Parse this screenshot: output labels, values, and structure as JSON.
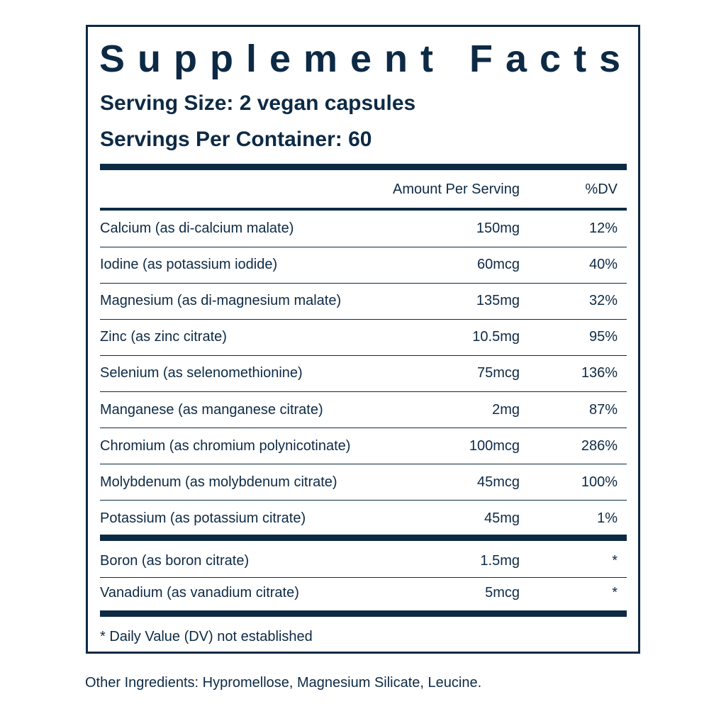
{
  "header": {
    "title": "Supplement Facts",
    "serving_size": "Serving Size: 2 vegan capsules",
    "servings_per_container": "Servings Per Container: 60"
  },
  "table": {
    "columns": [
      "Amount Per Serving",
      "%DV"
    ],
    "groups": [
      [
        [
          "Calcium (as di-calcium malate)",
          "150mg",
          "12%"
        ],
        [
          "Iodine (as potassium iodide)",
          "60mcg",
          "40%"
        ],
        [
          "Magnesium (as di-magnesium malate)",
          "135mg",
          "32%"
        ],
        [
          "Zinc (as zinc citrate)",
          "10.5mg",
          "95%"
        ],
        [
          "Selenium (as selenomethionine)",
          "75mcg",
          "136%"
        ],
        [
          "Manganese (as manganese citrate)",
          "2mg",
          "87%"
        ],
        [
          "Chromium (as chromium polynicotinate)",
          "100mcg",
          "286%"
        ],
        [
          "Molybdenum (as molybdenum citrate)",
          "45mcg",
          "100%"
        ],
        [
          "Potassium (as potassium citrate)",
          "45mg",
          "1%"
        ]
      ],
      [
        [
          "Boron (as boron citrate)",
          "1.5mg",
          "*"
        ],
        [
          "Vanadium (as vanadium citrate)",
          "5mcg",
          "*"
        ]
      ]
    ]
  },
  "footnote": "* Daily Value (DV) not established",
  "other_ingredients": "Other Ingredients: Hypromellose, Magnesium Silicate, Leucine."
}
